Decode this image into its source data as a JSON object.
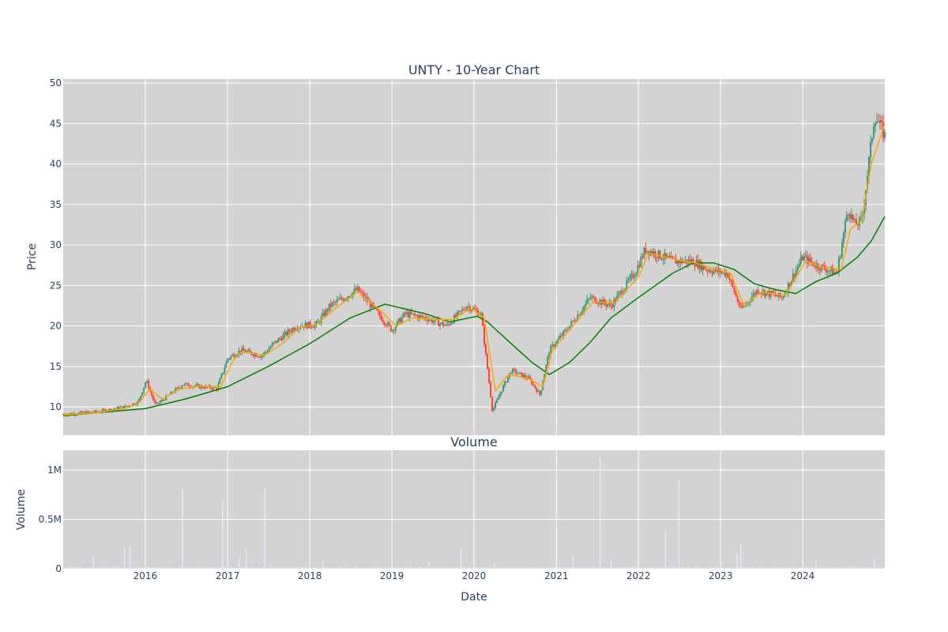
{
  "chart_data": [
    {
      "type": "candlestick",
      "title": "UNTY - 10-Year Chart",
      "ylabel": "Price",
      "ylim": [
        6.5,
        50.5
      ],
      "y_ticks": [
        10,
        15,
        20,
        25,
        30,
        35,
        40,
        45,
        50
      ],
      "x_range": [
        "2015-01-01",
        "2024-12-31"
      ],
      "grid": true,
      "colors": {
        "increasing": "#3d9970",
        "decreasing": "#ff4136",
        "ma_short": "#ffa500",
        "ma_long": "#008000",
        "plot_bg": "#d3d3d3",
        "grid": "#ffffff"
      },
      "series": [
        {
          "role": "price",
          "points": [
            [
              "2015-01-01",
              9.1
            ],
            [
              "2015-06-01",
              9.4
            ],
            [
              "2015-10-01",
              10.0
            ],
            [
              "2015-12-01",
              10.6
            ],
            [
              "2016-01-05",
              13.3
            ],
            [
              "2016-02-15",
              10.2
            ],
            [
              "2016-05-01",
              11.8
            ],
            [
              "2016-06-15",
              12.8
            ],
            [
              "2016-09-01",
              12.5
            ],
            [
              "2016-11-15",
              12.3
            ],
            [
              "2017-01-01",
              16.0
            ],
            [
              "2017-03-01",
              17.0
            ],
            [
              "2017-06-01",
              16.3
            ],
            [
              "2017-08-01",
              18.0
            ],
            [
              "2017-11-01",
              20.0
            ],
            [
              "2018-02-01",
              20.2
            ],
            [
              "2018-04-01",
              22.5
            ],
            [
              "2018-08-01",
              24.5
            ],
            [
              "2018-11-01",
              21.5
            ],
            [
              "2019-01-01",
              19.5
            ],
            [
              "2019-03-01",
              21.5
            ],
            [
              "2019-06-01",
              21.0
            ],
            [
              "2019-09-01",
              20.0
            ],
            [
              "2019-12-01",
              22.5
            ],
            [
              "2020-02-01",
              21.5
            ],
            [
              "2020-03-23",
              9.5
            ],
            [
              "2020-05-01",
              12.0
            ],
            [
              "2020-06-15",
              14.5
            ],
            [
              "2020-09-01",
              13.5
            ],
            [
              "2020-10-20",
              11.5
            ],
            [
              "2020-12-01",
              17.0
            ],
            [
              "2021-03-01",
              20.0
            ],
            [
              "2021-06-01",
              23.5
            ],
            [
              "2021-09-01",
              22.5
            ],
            [
              "2021-12-15",
              26.5
            ],
            [
              "2022-02-01",
              29.5
            ],
            [
              "2022-06-01",
              28.0
            ],
            [
              "2022-09-01",
              28.0
            ],
            [
              "2022-11-01",
              27.0
            ],
            [
              "2023-02-01",
              26.5
            ],
            [
              "2023-04-01",
              22.0
            ],
            [
              "2023-06-15",
              24.5
            ],
            [
              "2023-08-01",
              24.0
            ],
            [
              "2023-10-01",
              23.5
            ],
            [
              "2024-01-01",
              28.5
            ],
            [
              "2024-03-01",
              27.5
            ],
            [
              "2024-06-01",
              26.5
            ],
            [
              "2024-07-20",
              34.5
            ],
            [
              "2024-08-20",
              32.5
            ],
            [
              "2024-09-20",
              33.0
            ],
            [
              "2024-10-20",
              40.0
            ],
            [
              "2024-11-15",
              46.0
            ],
            [
              "2024-12-31",
              43.5
            ]
          ]
        },
        {
          "role": "moving-average-short",
          "points": [
            [
              "2015-01-01",
              9.0
            ],
            [
              "2015-06-01",
              9.3
            ],
            [
              "2015-10-01",
              9.8
            ],
            [
              "2015-12-01",
              10.4
            ],
            [
              "2016-01-20",
              12.2
            ],
            [
              "2016-03-15",
              11.0
            ],
            [
              "2016-06-01",
              12.2
            ],
            [
              "2016-09-01",
              12.6
            ],
            [
              "2016-11-30",
              12.4
            ],
            [
              "2017-01-20",
              15.5
            ],
            [
              "2017-03-01",
              16.8
            ],
            [
              "2017-06-15",
              16.4
            ],
            [
              "2017-09-01",
              17.8
            ],
            [
              "2017-11-15",
              19.8
            ],
            [
              "2018-02-01",
              20.2
            ],
            [
              "2018-05-01",
              22.3
            ],
            [
              "2018-08-01",
              24.2
            ],
            [
              "2018-11-15",
              21.8
            ],
            [
              "2019-01-20",
              20.0
            ],
            [
              "2019-04-01",
              21.0
            ],
            [
              "2019-07-01",
              20.8
            ],
            [
              "2019-10-01",
              20.8
            ],
            [
              "2019-12-15",
              22.2
            ],
            [
              "2020-02-15",
              21.0
            ],
            [
              "2020-04-05",
              12.0
            ],
            [
              "2020-06-01",
              14.0
            ],
            [
              "2020-09-01",
              13.5
            ],
            [
              "2020-11-01",
              12.5
            ],
            [
              "2020-12-15",
              17.0
            ],
            [
              "2021-03-15",
              20.0
            ],
            [
              "2021-06-15",
              23.0
            ],
            [
              "2021-09-15",
              22.8
            ],
            [
              "2021-12-31",
              26.0
            ],
            [
              "2022-02-15",
              29.0
            ],
            [
              "2022-06-15",
              28.2
            ],
            [
              "2022-09-15",
              27.8
            ],
            [
              "2022-11-15",
              27.2
            ],
            [
              "2023-02-15",
              26.5
            ],
            [
              "2023-04-15",
              22.5
            ],
            [
              "2023-07-01",
              24.2
            ],
            [
              "2023-10-15",
              23.8
            ],
            [
              "2024-01-15",
              28.0
            ],
            [
              "2024-04-01",
              27.2
            ],
            [
              "2024-06-20",
              27.0
            ],
            [
              "2024-08-01",
              32.0
            ],
            [
              "2024-09-20",
              33.0
            ],
            [
              "2024-11-01",
              40.0
            ],
            [
              "2024-12-31",
              45.0
            ]
          ]
        },
        {
          "role": "moving-average-long",
          "points": [
            [
              "2015-01-01",
              8.9
            ],
            [
              "2015-06-01",
              9.3
            ],
            [
              "2015-12-31",
              9.8
            ],
            [
              "2016-06-30",
              11.0
            ],
            [
              "2016-12-31",
              12.5
            ],
            [
              "2017-06-30",
              15.0
            ],
            [
              "2017-12-31",
              17.8
            ],
            [
              "2018-06-30",
              21.0
            ],
            [
              "2018-12-01",
              22.7
            ],
            [
              "2019-06-01",
              21.5
            ],
            [
              "2019-09-15",
              20.5
            ],
            [
              "2020-01-15",
              21.2
            ],
            [
              "2020-03-01",
              20.5
            ],
            [
              "2020-06-15",
              17.8
            ],
            [
              "2020-09-15",
              15.5
            ],
            [
              "2020-12-01",
              14.0
            ],
            [
              "2021-03-01",
              15.5
            ],
            [
              "2021-06-01",
              18.0
            ],
            [
              "2021-09-01",
              21.0
            ],
            [
              "2021-12-31",
              23.5
            ],
            [
              "2022-06-01",
              26.5
            ],
            [
              "2022-09-01",
              27.8
            ],
            [
              "2022-12-01",
              27.8
            ],
            [
              "2023-03-01",
              27.0
            ],
            [
              "2023-06-01",
              25.2
            ],
            [
              "2023-09-01",
              24.5
            ],
            [
              "2023-12-01",
              24.0
            ],
            [
              "2024-03-01",
              25.5
            ],
            [
              "2024-06-01",
              26.5
            ],
            [
              "2024-09-01",
              28.5
            ],
            [
              "2024-11-01",
              30.5
            ],
            [
              "2024-12-31",
              33.5
            ]
          ]
        }
      ]
    },
    {
      "type": "bar",
      "title": "Volume",
      "xlabel": "Date",
      "ylabel": "Volume",
      "ylim": [
        0,
        1200000
      ],
      "y_ticks": [
        0,
        500000,
        1000000
      ],
      "y_tick_labels": [
        "0",
        "0.5M",
        "1M"
      ],
      "x_tick_labels": [
        "2016",
        "2017",
        "2018",
        "2019",
        "2020",
        "2021",
        "2022",
        "2023",
        "2024"
      ],
      "baseline": 15000,
      "spikes": [
        [
          "2015-05-15",
          130000
        ],
        [
          "2015-10-01",
          210000
        ],
        [
          "2015-10-25",
          240000
        ],
        [
          "2016-06-15",
          800000
        ],
        [
          "2016-12-10",
          700000
        ],
        [
          "2017-02-20",
          110000
        ],
        [
          "2017-03-25",
          210000
        ],
        [
          "2017-06-15",
          820000
        ],
        [
          "2018-03-01",
          80000
        ],
        [
          "2019-06-15",
          70000
        ],
        [
          "2019-11-05",
          210000
        ],
        [
          "2020-04-01",
          60000
        ],
        [
          "2021-03-15",
          130000
        ],
        [
          "2021-07-15",
          1130000
        ],
        [
          "2021-09-01",
          110000
        ],
        [
          "2022-05-01",
          380000
        ],
        [
          "2022-06-30",
          900000
        ],
        [
          "2023-03-15",
          150000
        ],
        [
          "2023-04-01",
          250000
        ],
        [
          "2024-03-01",
          80000
        ],
        [
          "2024-11-15",
          90000
        ]
      ],
      "colors": {
        "bar": "#e6e6fa",
        "plot_bg": "#d3d3d3",
        "grid": "#ffffff"
      }
    }
  ]
}
